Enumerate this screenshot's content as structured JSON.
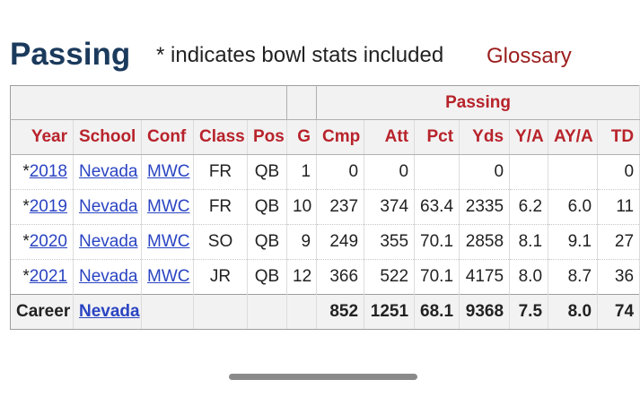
{
  "header": {
    "title": "Passing",
    "note": "* indicates bowl stats included",
    "glossary_label": "Glossary"
  },
  "table": {
    "group_header": "Passing",
    "columns": [
      "Year",
      "School",
      "Conf",
      "Class",
      "Pos",
      "G",
      "Cmp",
      "Att",
      "Pct",
      "Yds",
      "Y/A",
      "AY/A",
      "TD"
    ],
    "rows": [
      {
        "marker": "*",
        "year": "2018",
        "school": "Nevada",
        "conf": "MWC",
        "class": "FR",
        "pos": "QB",
        "g": "1",
        "cmp": "0",
        "att": "0",
        "pct": "",
        "yds": "0",
        "ya": "",
        "aya": "",
        "td": "0"
      },
      {
        "marker": "*",
        "year": "2019",
        "school": "Nevada",
        "conf": "MWC",
        "class": "FR",
        "pos": "QB",
        "g": "10",
        "cmp": "237",
        "att": "374",
        "pct": "63.4",
        "yds": "2335",
        "ya": "6.2",
        "aya": "6.0",
        "td": "11"
      },
      {
        "marker": "*",
        "year": "2020",
        "school": "Nevada",
        "conf": "MWC",
        "class": "SO",
        "pos": "QB",
        "g": "9",
        "cmp": "249",
        "att": "355",
        "pct": "70.1",
        "yds": "2858",
        "ya": "8.1",
        "aya": "9.1",
        "td": "27"
      },
      {
        "marker": "*",
        "year": "2021",
        "school": "Nevada",
        "conf": "MWC",
        "class": "JR",
        "pos": "QB",
        "g": "12",
        "cmp": "366",
        "att": "522",
        "pct": "70.1",
        "yds": "4175",
        "ya": "8.0",
        "aya": "8.7",
        "td": "36"
      }
    ],
    "career": {
      "label": "Career",
      "school": "Nevada",
      "cmp": "852",
      "att": "1251",
      "pct": "68.1",
      "yds": "9368",
      "ya": "7.5",
      "aya": "8.0",
      "td": "74"
    }
  },
  "colors": {
    "title": "#1b3a5c",
    "header_text": "#b8232b",
    "link": "#2a44c2",
    "glossary": "#9b1c1c"
  }
}
